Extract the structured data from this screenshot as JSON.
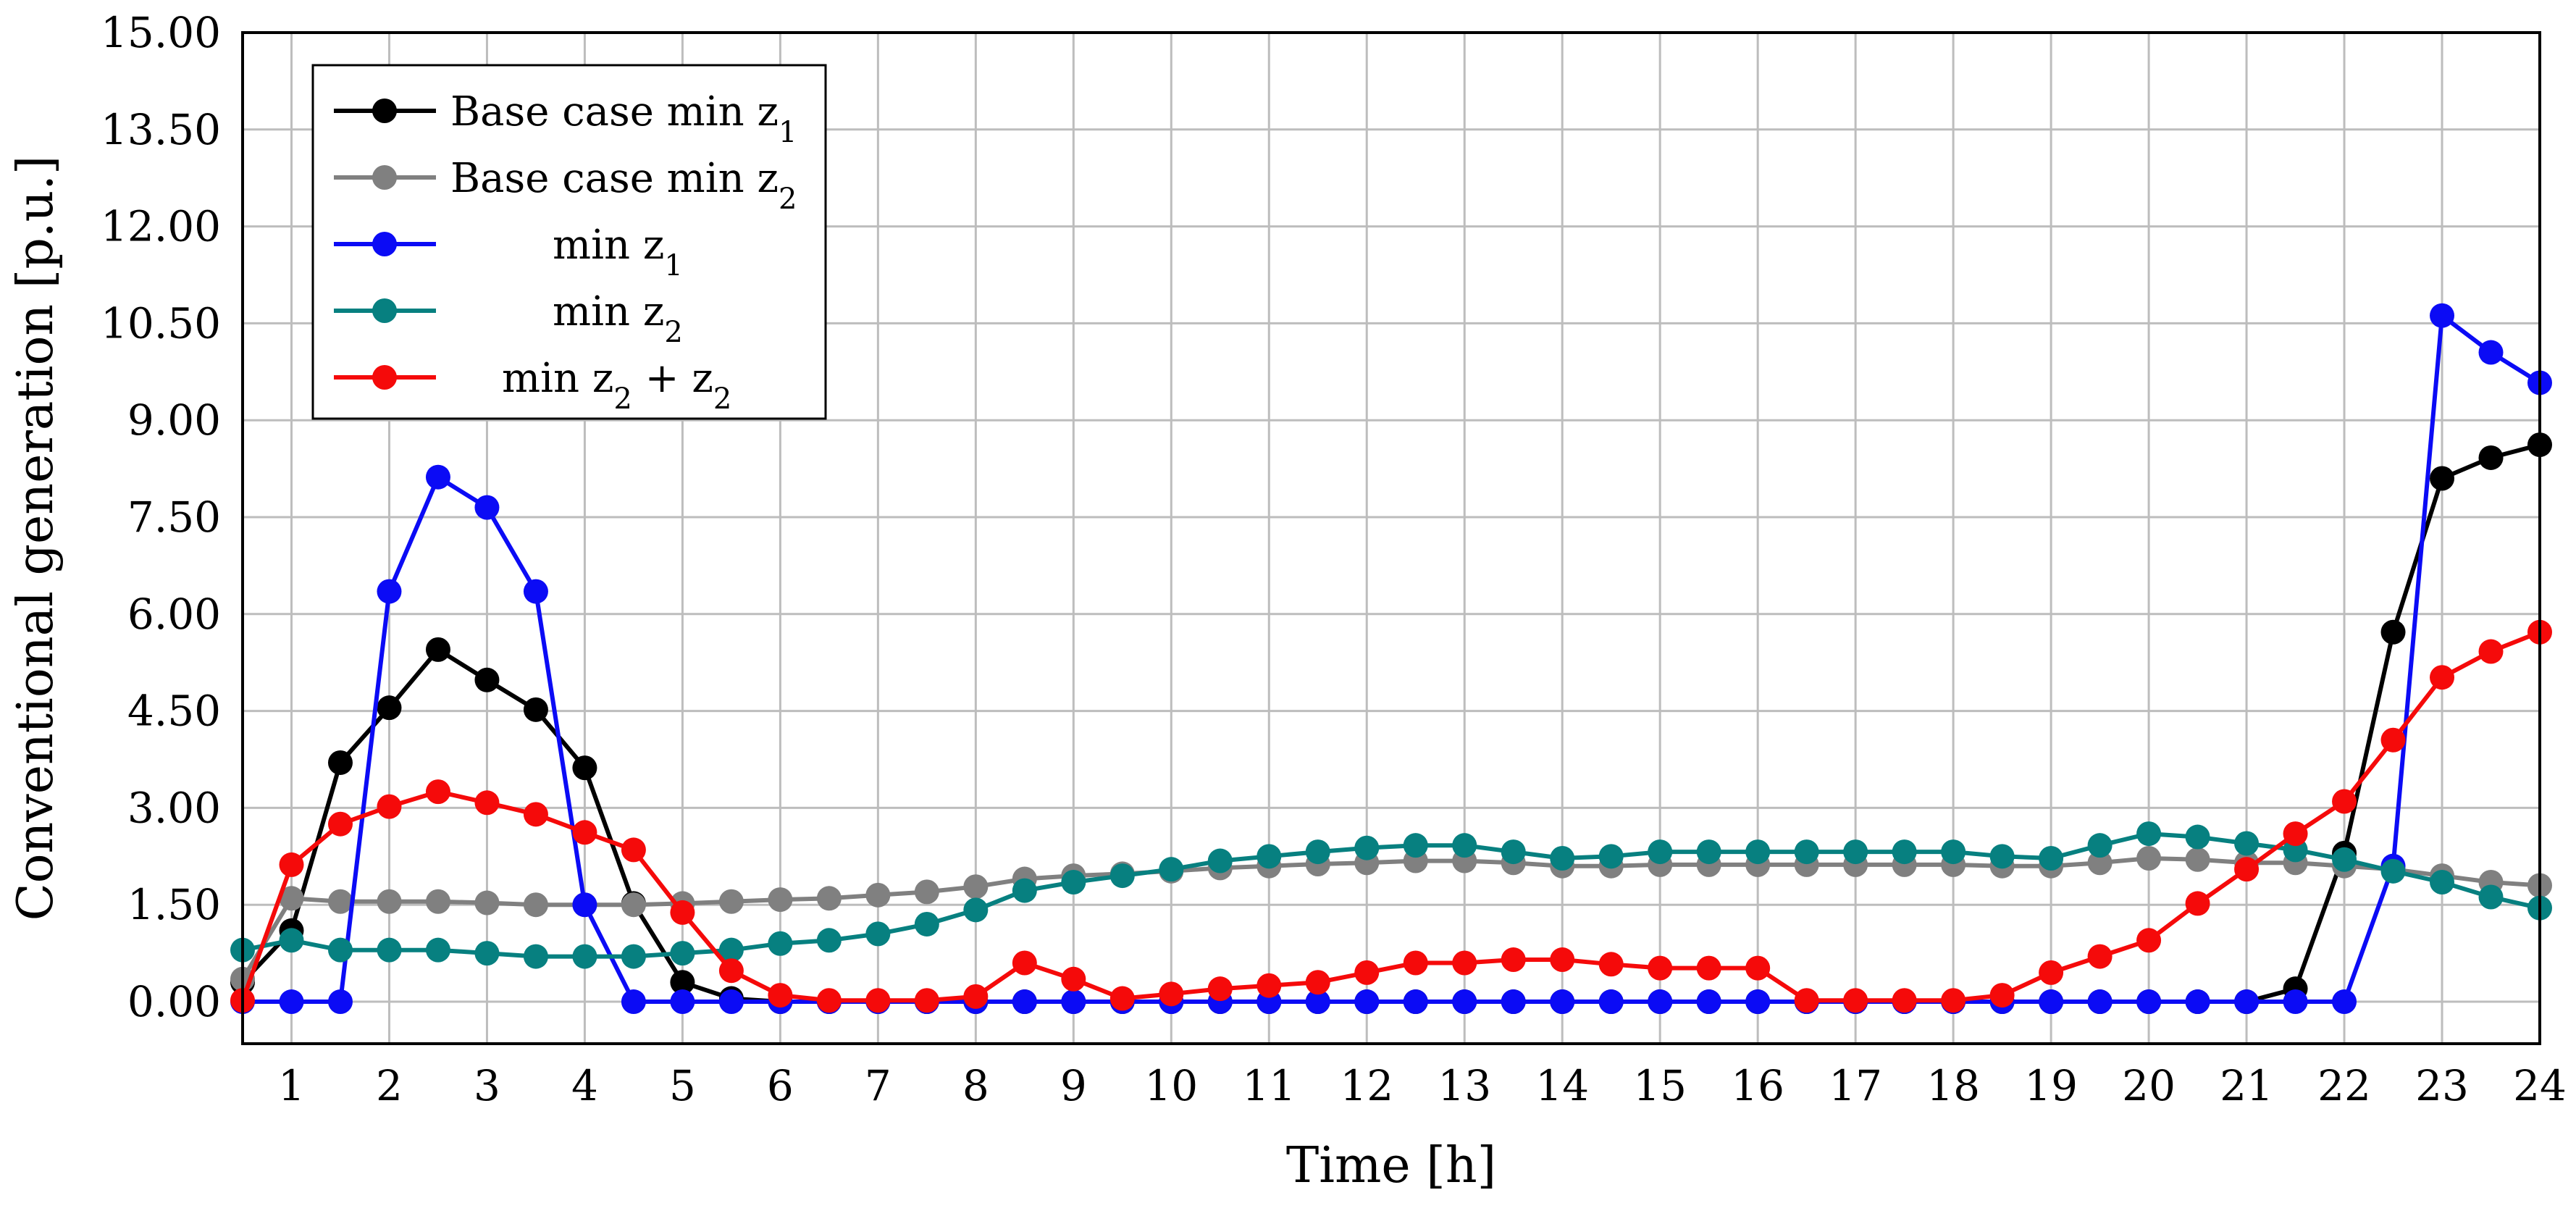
{
  "chart_data": {
    "type": "line",
    "title": "",
    "xlabel": "Time [h]",
    "ylabel": "Conventional generation [p.u.]",
    "xlim": [
      0.5,
      24
    ],
    "ylim": [
      -0.65,
      15
    ],
    "xticks": [
      1,
      2,
      3,
      4,
      5,
      6,
      7,
      8,
      9,
      10,
      11,
      12,
      13,
      14,
      15,
      16,
      17,
      18,
      19,
      20,
      21,
      22,
      23,
      24
    ],
    "xtick_labels": [
      "1",
      "2",
      "3",
      "4",
      "5",
      "6",
      "7",
      "8",
      "9",
      "10",
      "11",
      "12",
      "13",
      "14",
      "15",
      "16",
      "17",
      "18",
      "19",
      "20",
      "21",
      "22",
      "23",
      "24"
    ],
    "yticks": [
      0,
      1.5,
      3,
      4.5,
      6,
      7.5,
      9,
      10.5,
      12,
      13.5,
      15
    ],
    "ytick_labels": [
      "0.00",
      "1.50",
      "3.00",
      "4.50",
      "6.00",
      "7.50",
      "9.00",
      "10.50",
      "12.00",
      "13.50",
      "15.00"
    ],
    "grid": true,
    "legend_position": "top-left",
    "x": [
      0.5,
      1,
      1.5,
      2,
      2.5,
      3,
      3.5,
      4,
      4.5,
      5,
      5.5,
      6,
      6.5,
      7,
      7.5,
      8,
      8.5,
      9,
      9.5,
      10,
      10.5,
      11,
      11.5,
      12,
      12.5,
      13,
      13.5,
      14,
      14.5,
      15,
      15.5,
      16,
      16.5,
      17,
      17.5,
      18,
      18.5,
      19,
      19.5,
      20,
      20.5,
      21,
      21.5,
      22,
      22.5,
      23,
      23.5,
      24
    ],
    "series": [
      {
        "name": "Base case min z1",
        "legend_main": "Base case min z",
        "legend_sub": "1",
        "color": "#000000",
        "values": [
          0.3,
          1.1,
          3.7,
          4.55,
          5.45,
          4.98,
          4.52,
          3.62,
          1.52,
          0.3,
          0.05,
          0,
          0,
          0,
          0,
          0,
          0,
          0,
          0,
          0,
          0,
          0,
          0,
          0,
          0,
          0,
          0,
          0,
          0,
          0,
          0,
          0,
          0,
          0,
          0,
          0,
          0,
          0,
          0,
          0,
          0,
          0,
          0.2,
          2.3,
          5.72,
          8.1,
          8.42,
          8.62
        ]
      },
      {
        "name": "Base case min z2",
        "legend_main": "Base case min z",
        "legend_sub": "2",
        "color": "#808080",
        "values": [
          0.35,
          1.6,
          1.55,
          1.55,
          1.55,
          1.53,
          1.5,
          1.5,
          1.5,
          1.52,
          1.55,
          1.58,
          1.6,
          1.65,
          1.7,
          1.78,
          1.9,
          1.95,
          1.98,
          2.02,
          2.07,
          2.1,
          2.13,
          2.15,
          2.18,
          2.18,
          2.15,
          2.1,
          2.1,
          2.12,
          2.12,
          2.12,
          2.12,
          2.12,
          2.12,
          2.12,
          2.1,
          2.1,
          2.15,
          2.22,
          2.2,
          2.15,
          2.15,
          2.1,
          2.05,
          1.95,
          1.85,
          1.8
        ]
      },
      {
        "name": "min z1",
        "legend_main": "min z",
        "legend_sub": "1",
        "color": "#0b0bf5",
        "values": [
          0,
          0,
          0,
          6.35,
          8.12,
          7.65,
          6.35,
          1.5,
          0,
          0,
          0,
          0,
          0,
          0,
          0,
          0,
          0,
          0,
          0,
          0,
          0,
          0,
          0,
          0,
          0,
          0,
          0,
          0,
          0,
          0,
          0,
          0,
          0,
          0,
          0,
          0,
          0,
          0,
          0,
          0,
          0,
          0,
          0,
          0,
          2.1,
          10.62,
          10.05,
          9.58
        ]
      },
      {
        "name": "min z2",
        "legend_main": "min z",
        "legend_sub": "2",
        "color": "#078080",
        "values": [
          0.8,
          0.95,
          0.8,
          0.8,
          0.8,
          0.75,
          0.7,
          0.7,
          0.7,
          0.75,
          0.8,
          0.9,
          0.95,
          1.05,
          1.2,
          1.42,
          1.72,
          1.85,
          1.95,
          2.05,
          2.18,
          2.25,
          2.32,
          2.38,
          2.42,
          2.42,
          2.32,
          2.22,
          2.25,
          2.32,
          2.32,
          2.32,
          2.32,
          2.32,
          2.32,
          2.32,
          2.25,
          2.22,
          2.42,
          2.6,
          2.55,
          2.45,
          2.35,
          2.2,
          2.02,
          1.85,
          1.62,
          1.45
        ]
      },
      {
        "name": "min z2 + z2",
        "legend_main": "min z",
        "legend_sub": "2",
        "legend_extra": " + z",
        "legend_sub2": "2",
        "color": "#f50a0a",
        "values": [
          0.02,
          2.12,
          2.75,
          3.02,
          3.25,
          3.08,
          2.9,
          2.62,
          2.35,
          1.38,
          0.48,
          0.1,
          0.02,
          0.02,
          0.02,
          0.08,
          0.6,
          0.35,
          0.05,
          0.12,
          0.2,
          0.25,
          0.3,
          0.45,
          0.6,
          0.6,
          0.65,
          0.65,
          0.58,
          0.52,
          0.52,
          0.52,
          0.02,
          0.02,
          0.02,
          0.02,
          0.1,
          0.45,
          0.7,
          0.95,
          1.52,
          2.05,
          2.6,
          3.1,
          4.05,
          5.02,
          5.42,
          5.72
        ]
      }
    ]
  }
}
